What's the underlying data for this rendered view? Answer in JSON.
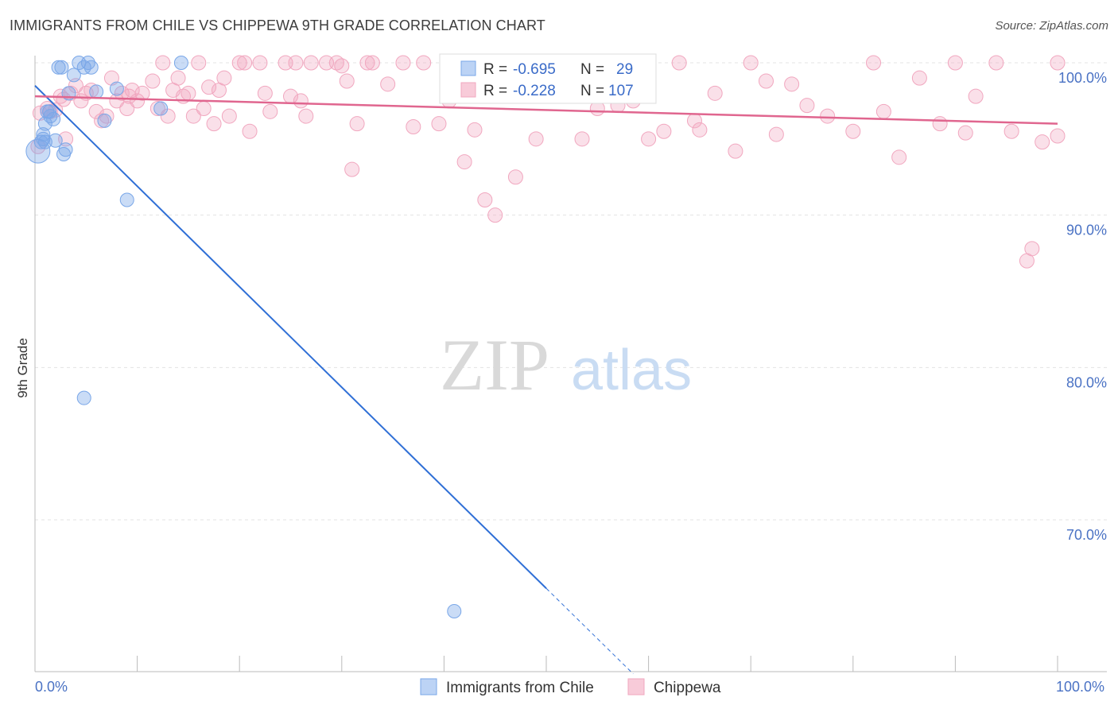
{
  "title": "IMMIGRANTS FROM CHILE VS CHIPPEWA 9TH GRADE CORRELATION CHART",
  "source": "Source: ZipAtlas.com",
  "watermark": {
    "zip": "ZIP",
    "atlas": "atlas"
  },
  "chart_data": {
    "type": "scatter",
    "title": "IMMIGRANTS FROM CHILE VS CHIPPEWA 9TH GRADE CORRELATION CHART",
    "xlabel": "",
    "ylabel": "9th Grade",
    "xlim": [
      0,
      100
    ],
    "ylim": [
      60,
      101.5
    ],
    "y_ticks": [
      {
        "value": 100,
        "label": "100.0%"
      },
      {
        "value": 90,
        "label": "90.0%"
      },
      {
        "value": 80,
        "label": "80.0%"
      },
      {
        "value": 70,
        "label": "70.0%"
      }
    ],
    "x_tick_labels": {
      "min": "0.0%",
      "max": "100.0%"
    },
    "legend": [
      {
        "series": "Immigrants from Chile",
        "r_label": "R =",
        "r": "-0.695",
        "n_label": "N =",
        "n": "29"
      },
      {
        "series": "Chippewa",
        "r_label": "R =",
        "r": "-0.228",
        "n_label": "N =",
        "n": "107"
      }
    ],
    "series": [
      {
        "name": "Immigrants from Chile",
        "color": "#7aa7e8",
        "line_color": "#2f6fd6",
        "trend": {
          "x0": 0,
          "y0": 98.5,
          "x1": 50,
          "y1": 65.5,
          "dash_to_x": 58.5
        },
        "points": [
          [
            0.3,
            94.2
          ],
          [
            0.6,
            94.8
          ],
          [
            0.8,
            95.3
          ],
          [
            1.0,
            96.0
          ],
          [
            1.2,
            96.8
          ],
          [
            1.5,
            96.5
          ],
          [
            1.8,
            96.3
          ],
          [
            2.0,
            94.9
          ],
          [
            2.3,
            99.7
          ],
          [
            2.6,
            99.7
          ],
          [
            2.8,
            94.0
          ],
          [
            3.0,
            94.3
          ],
          [
            3.3,
            98.0
          ],
          [
            3.8,
            99.2
          ],
          [
            4.3,
            100.0
          ],
          [
            4.8,
            99.7
          ],
          [
            5.2,
            100.0
          ],
          [
            5.5,
            99.7
          ],
          [
            6.0,
            98.1
          ],
          [
            6.8,
            96.2
          ],
          [
            8.0,
            98.3
          ],
          [
            9.0,
            91.0
          ],
          [
            12.3,
            97.0
          ],
          [
            14.3,
            100.0
          ],
          [
            0.8,
            95.0
          ],
          [
            1.4,
            96.8
          ],
          [
            4.8,
            78.0
          ],
          [
            41.0,
            64.0
          ],
          [
            1.0,
            94.8
          ]
        ]
      },
      {
        "name": "Chippewa",
        "color": "#f1a7bf",
        "line_color": "#e0668f",
        "trend": {
          "x0": 0,
          "y0": 97.8,
          "x1": 100,
          "y1": 96.0
        },
        "points": [
          [
            0.3,
            94.5
          ],
          [
            0.5,
            96.7
          ],
          [
            1.5,
            96.8
          ],
          [
            2.0,
            96.9
          ],
          [
            2.5,
            97.8
          ],
          [
            3.0,
            95.0
          ],
          [
            3.5,
            98.0
          ],
          [
            4.0,
            98.5
          ],
          [
            4.5,
            97.5
          ],
          [
            5.0,
            98.0
          ],
          [
            5.5,
            98.2
          ],
          [
            6.0,
            96.8
          ],
          [
            7.0,
            96.5
          ],
          [
            7.5,
            99.0
          ],
          [
            8.0,
            97.5
          ],
          [
            8.5,
            98.0
          ],
          [
            9.0,
            97.0
          ],
          [
            9.5,
            98.2
          ],
          [
            10.0,
            97.5
          ],
          [
            10.5,
            98.0
          ],
          [
            11.5,
            98.8
          ],
          [
            12.0,
            97.0
          ],
          [
            12.5,
            100.0
          ],
          [
            13.0,
            96.5
          ],
          [
            13.5,
            98.2
          ],
          [
            14.0,
            99.0
          ],
          [
            14.5,
            97.8
          ],
          [
            15.0,
            98.0
          ],
          [
            15.5,
            96.5
          ],
          [
            16.5,
            97.0
          ],
          [
            17.0,
            98.4
          ],
          [
            17.5,
            96.0
          ],
          [
            18.0,
            98.2
          ],
          [
            19.0,
            96.5
          ],
          [
            20.0,
            100.0
          ],
          [
            20.5,
            100.0
          ],
          [
            21.0,
            95.5
          ],
          [
            22.0,
            100.0
          ],
          [
            22.5,
            98.0
          ],
          [
            23.0,
            96.8
          ],
          [
            24.5,
            100.0
          ],
          [
            25.0,
            97.8
          ],
          [
            26.0,
            97.5
          ],
          [
            26.5,
            96.5
          ],
          [
            27.0,
            100.0
          ],
          [
            28.5,
            100.0
          ],
          [
            29.5,
            100.0
          ],
          [
            30.5,
            98.8
          ],
          [
            31.0,
            93.0
          ],
          [
            31.5,
            96.0
          ],
          [
            33.0,
            100.0
          ],
          [
            34.5,
            98.6
          ],
          [
            36.0,
            100.0
          ],
          [
            37.0,
            95.8
          ],
          [
            38.0,
            100.0
          ],
          [
            39.5,
            96.0
          ],
          [
            40.5,
            97.5
          ],
          [
            42.0,
            93.5
          ],
          [
            43.0,
            95.6
          ],
          [
            44.0,
            91.0
          ],
          [
            45.0,
            90.0
          ],
          [
            46.0,
            98.0
          ],
          [
            47.0,
            92.5
          ],
          [
            49.0,
            95.0
          ],
          [
            51.0,
            98.5
          ],
          [
            53.5,
            95.0
          ],
          [
            55.0,
            97.0
          ],
          [
            57.0,
            97.2
          ],
          [
            58.5,
            97.5
          ],
          [
            60.0,
            95.0
          ],
          [
            61.5,
            95.5
          ],
          [
            63.0,
            100.0
          ],
          [
            64.5,
            96.2
          ],
          [
            65.0,
            95.6
          ],
          [
            66.5,
            98.0
          ],
          [
            68.5,
            94.2
          ],
          [
            70.0,
            100.0
          ],
          [
            71.5,
            98.8
          ],
          [
            72.5,
            95.3
          ],
          [
            74.0,
            98.6
          ],
          [
            75.5,
            97.2
          ],
          [
            77.5,
            96.5
          ],
          [
            80.0,
            95.5
          ],
          [
            82.0,
            100.0
          ],
          [
            83.0,
            96.8
          ],
          [
            84.5,
            93.8
          ],
          [
            86.5,
            99.0
          ],
          [
            88.5,
            96.0
          ],
          [
            90.0,
            100.0
          ],
          [
            91.0,
            95.4
          ],
          [
            92.0,
            97.8
          ],
          [
            94.0,
            100.0
          ],
          [
            95.5,
            95.5
          ],
          [
            97.0,
            87.0
          ],
          [
            97.5,
            87.8
          ],
          [
            98.5,
            94.8
          ],
          [
            100.0,
            100.0
          ],
          [
            100.0,
            95.2
          ],
          [
            1.2,
            97.0
          ],
          [
            2.8,
            97.6
          ],
          [
            6.5,
            96.2
          ],
          [
            9.2,
            97.8
          ],
          [
            16.0,
            100.0
          ],
          [
            18.5,
            99.0
          ],
          [
            25.5,
            100.0
          ],
          [
            30.0,
            99.8
          ],
          [
            32.5,
            100.0
          ]
        ]
      }
    ]
  }
}
